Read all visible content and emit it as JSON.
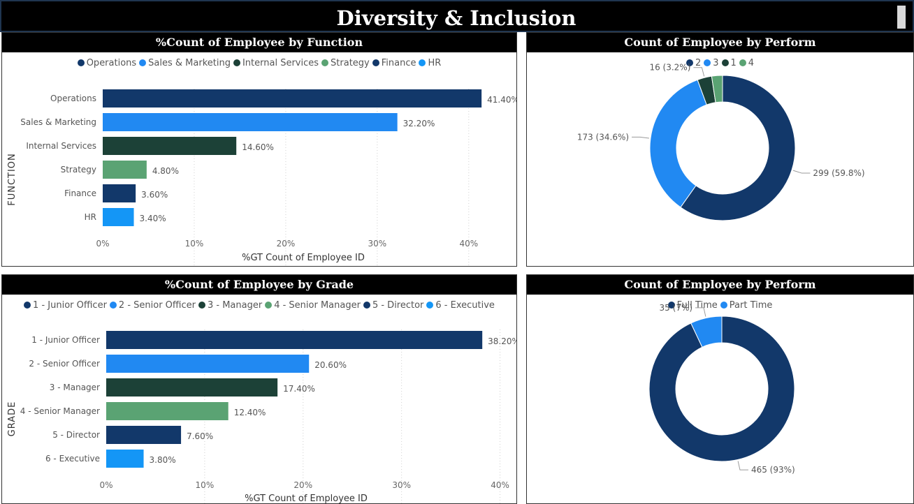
{
  "page": {
    "title": "Diversity & Inclusion"
  },
  "colors": [
    "#12386a",
    "#2189f2",
    "#1c4137",
    "#5aa373",
    "#12386a",
    "#1496f6"
  ],
  "chart_data": [
    {
      "type": "bar",
      "orientation": "horizontal",
      "title": "%Count of Employee by Function",
      "xlabel": "%GT Count of Employee ID",
      "ylabel": "FUNCTION",
      "categories": [
        "Operations",
        "Sales & Marketing",
        "Internal Services",
        "Strategy",
        "Finance",
        "HR"
      ],
      "values": [
        41.4,
        32.2,
        14.6,
        4.8,
        3.6,
        3.4
      ],
      "value_labels": [
        "41.40%",
        "32.20%",
        "14.60%",
        "4.80%",
        "3.60%",
        "3.40%"
      ],
      "xlim": [
        0,
        42
      ],
      "xticks": [
        0,
        10,
        20,
        30,
        40
      ],
      "xtick_labels": [
        "0%",
        "10%",
        "20%",
        "30%",
        "40%"
      ],
      "legend": [
        "Operations",
        "Sales & Marketing",
        "Internal Services",
        "Strategy",
        "Finance",
        "HR"
      ],
      "legend_position": "top-center",
      "grid": true
    },
    {
      "type": "pie",
      "donut": true,
      "title": "Count of Employee by Perform",
      "categories": [
        "2",
        "3",
        "1",
        "4"
      ],
      "values": [
        299,
        173,
        16,
        12
      ],
      "slice_labels": [
        "299 (59.8%)",
        "173 (34.6%)",
        "16 (3.2%)",
        ""
      ],
      "colors": [
        "#12386a",
        "#2189f2",
        "#1c4137",
        "#5aa373"
      ],
      "legend": [
        "2",
        "3",
        "1",
        "4"
      ],
      "legend_position": "top-center"
    },
    {
      "type": "bar",
      "orientation": "horizontal",
      "title": "%Count of Employee by Grade",
      "xlabel": "%GT Count of Employee ID",
      "ylabel": "GRADE",
      "categories": [
        "1 - Junior Officer",
        "2 - Senior Officer",
        "3 - Manager",
        "4 - Senior Manager",
        "5 - Director",
        "6 - Executive"
      ],
      "values": [
        38.2,
        20.6,
        17.4,
        12.4,
        7.6,
        3.8
      ],
      "value_labels": [
        "38.20%",
        "20.60%",
        "17.40%",
        "12.40%",
        "7.60%",
        "3.80%"
      ],
      "xlim": [
        0,
        40.6
      ],
      "xticks": [
        0,
        10,
        20,
        30,
        40
      ],
      "xtick_labels": [
        "0%",
        "10%",
        "20%",
        "30%",
        "40%"
      ],
      "legend": [
        "1 - Junior Officer",
        "2 -  Senior Officer",
        "3 - Manager",
        "4 - Senior Manager",
        "5 - Director",
        "6 - Executive"
      ],
      "legend_position": "top-center",
      "grid": true
    },
    {
      "type": "pie",
      "donut": true,
      "title": "Count of Employee by Perform",
      "categories": [
        "Full Time",
        "Part Time"
      ],
      "values": [
        465,
        35
      ],
      "slice_labels": [
        "465 (93%)",
        "35 (7%)"
      ],
      "colors": [
        "#12386a",
        "#2189f2"
      ],
      "legend": [
        "Full Time",
        "Part Time"
      ],
      "legend_position": "top-center"
    }
  ]
}
